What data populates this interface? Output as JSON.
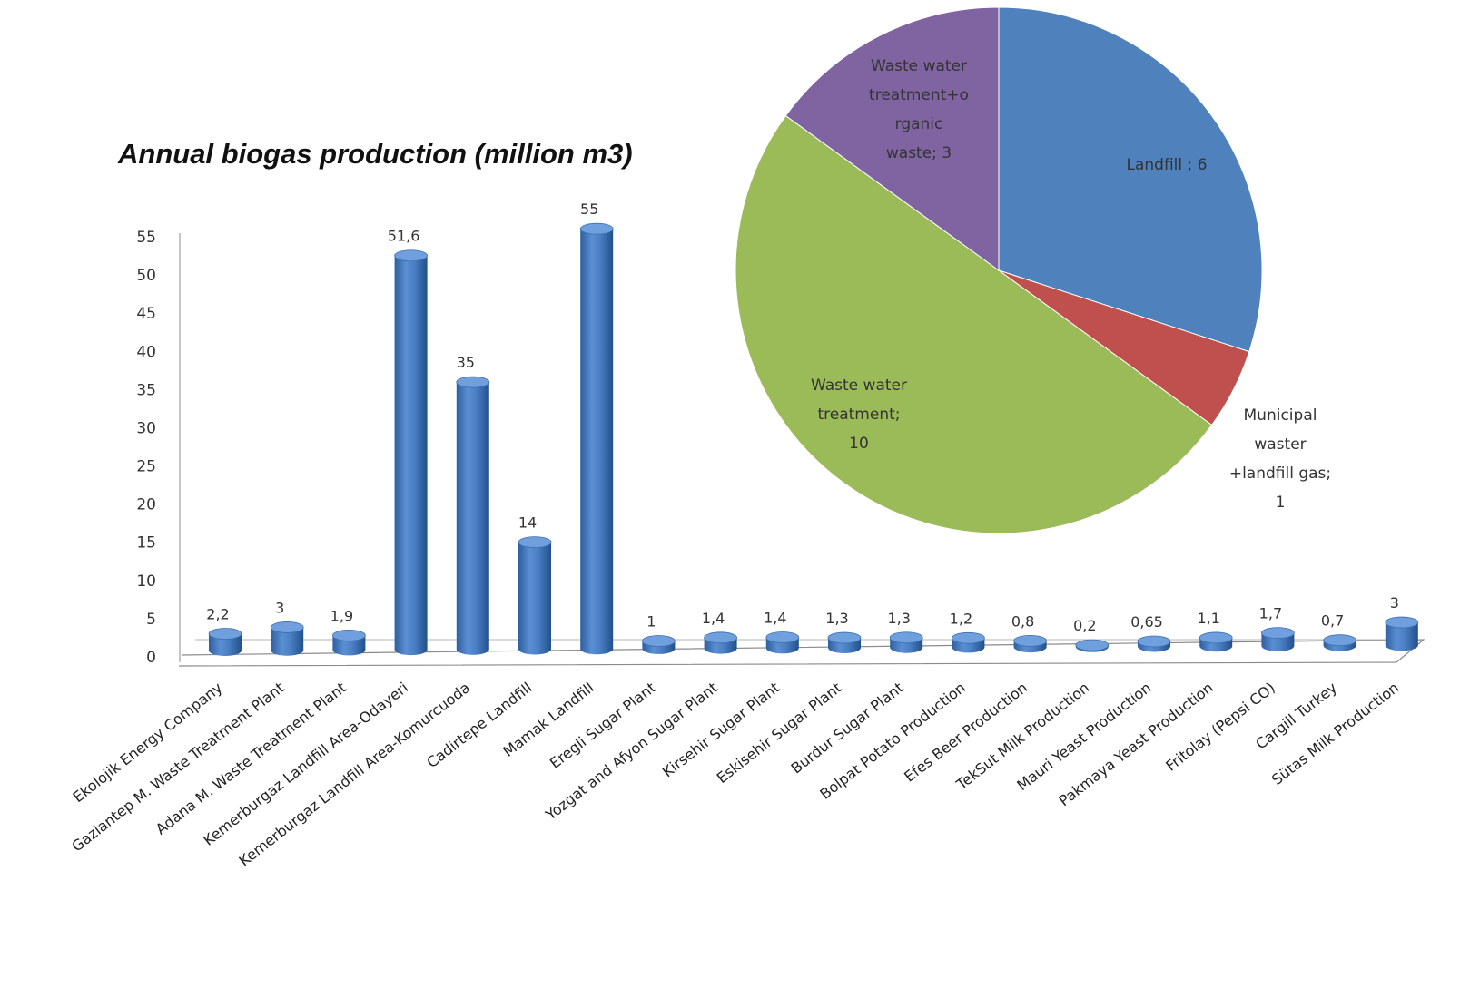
{
  "chart_data": [
    {
      "type": "bar",
      "title": "Annual biogas production (million m3)",
      "ylim": [
        0,
        55
      ],
      "yticks": [
        "0",
        "5",
        "10",
        "15",
        "20",
        "25",
        "30",
        "35",
        "40",
        "45",
        "50",
        "55"
      ],
      "bar_color": "#4f81bd",
      "categories": [
        "Ekolojik Energy Company",
        "Gaziantep M. Waste Treatment Plant",
        "Adana M. Waste Treatment Plant",
        "Kemerburgaz Landfill Area-Odayeri",
        "Kemerburgaz Landfill Area-Komurcuoda",
        "Cadirtepe Landfill",
        "Mamak Landfill",
        "Eregli Sugar Plant",
        "Yozgat and Afyon Sugar Plant",
        "Kirsehir Sugar Plant",
        "Eskisehir Sugar Plant",
        "Burdur Sugar Plant",
        "Bolpat Potato  Production",
        "Efes Beer Production",
        "TekSut Milk Production",
        "Mauri Yeast Production",
        "Pakmaya Yeast Production",
        "Fritolay (Pepsi CO)",
        "Cargill Turkey",
        "Sütas Milk Production"
      ],
      "values": [
        2.2,
        3,
        1.9,
        51.6,
        35,
        14,
        55,
        1,
        1.4,
        1.4,
        1.3,
        1.3,
        1.2,
        0.8,
        0.2,
        0.65,
        1.1,
        1.7,
        0.7,
        3
      ],
      "value_labels": [
        "2,2",
        "3",
        "1,9",
        "51,6",
        "35",
        "14",
        "55",
        "1",
        "1,4",
        "1,4",
        "1,3",
        "1,3",
        "1,2",
        "0,8",
        "0,2",
        "0,65",
        "1,1",
        "1,7",
        "0,7",
        "3"
      ]
    },
    {
      "type": "pie",
      "slices": [
        {
          "label": [
            "Landfill ; 6"
          ],
          "value": 6,
          "color": "#4f81bd"
        },
        {
          "label": [
            "Municipal",
            "waster",
            "+landfill gas;",
            "1"
          ],
          "value": 1,
          "color": "#c0504d"
        },
        {
          "label": [
            "Waste water",
            "treatment;",
            "10"
          ],
          "value": 10,
          "color": "#9bbb59"
        },
        {
          "label": [
            "Waste water",
            "treatment+o",
            "rganic",
            "waste; 3"
          ],
          "value": 3,
          "color": "#8064a2"
        }
      ]
    }
  ]
}
